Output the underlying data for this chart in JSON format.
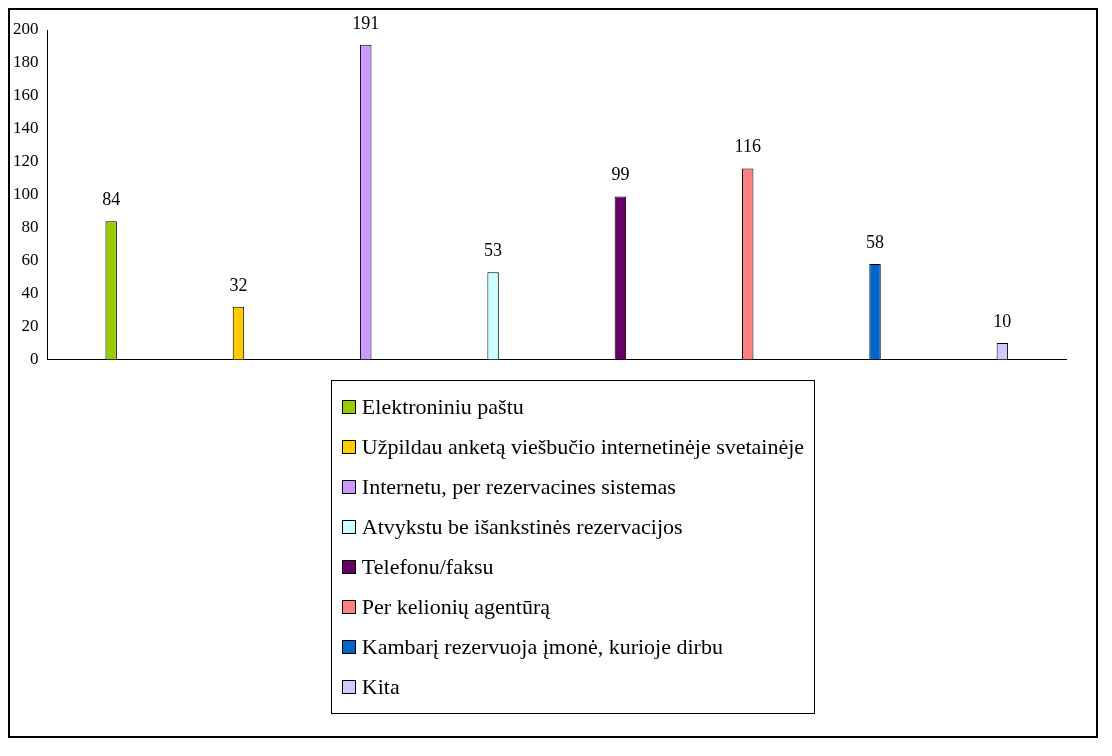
{
  "chart_data": {
    "type": "bar",
    "categories": [
      null,
      null,
      null,
      null,
      null,
      null,
      null,
      null
    ],
    "series": [
      {
        "name": "Elektroniniu paštu",
        "color": "#99cc00",
        "values": [
          84,
          null,
          null,
          null,
          null,
          null,
          null,
          null
        ]
      },
      {
        "name": "Užpildau anketą viešbučio internetinėje svetainėje",
        "color": "#ffcc00",
        "values": [
          null,
          32,
          null,
          null,
          null,
          null,
          null,
          null
        ]
      },
      {
        "name": "Internetu, per rezervacines sistemas",
        "color": "#cc99ff",
        "values": [
          null,
          null,
          191,
          null,
          null,
          null,
          null,
          null
        ]
      },
      {
        "name": "Atvykstu be išankstinės rezervacijos",
        "color": "#ccffff",
        "values": [
          null,
          null,
          null,
          53,
          null,
          null,
          null,
          null
        ]
      },
      {
        "name": "Telefonu/faksu",
        "color": "#660066",
        "values": [
          null,
          null,
          null,
          null,
          99,
          null,
          null,
          null
        ]
      },
      {
        "name": "Per kelionių agentūrą",
        "color": "#ff8080",
        "values": [
          null,
          null,
          null,
          null,
          null,
          116,
          null,
          null
        ]
      },
      {
        "name": "Kambarį rezervuoja įmonė, kurioje dirbu",
        "color": "#0066cc",
        "values": [
          null,
          null,
          null,
          null,
          null,
          null,
          58,
          null
        ]
      },
      {
        "name": "Kita",
        "color": "#ccccff",
        "values": [
          null,
          null,
          null,
          null,
          null,
          null,
          null,
          10
        ]
      }
    ],
    "ylim": [
      0,
      200
    ],
    "yticks": [
      0,
      20,
      40,
      60,
      80,
      100,
      120,
      140,
      160,
      180,
      200
    ],
    "grid": false,
    "legend": "bottom",
    "data_labels": true
  }
}
